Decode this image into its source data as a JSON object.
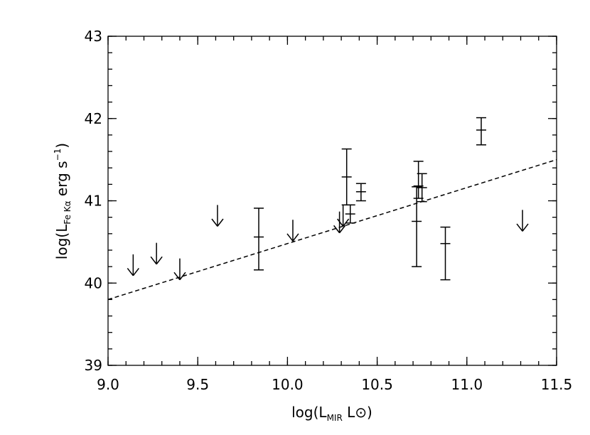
{
  "chart_data": {
    "type": "scatter",
    "xlabel": {
      "prefix": "log(L",
      "sub": "MIR",
      "suffix": " L⊙)"
    },
    "ylabel": {
      "prefix": "log(L",
      "sub": "Fe Kα",
      "middle": "   erg s",
      "sup": "−1",
      "suffix": ")"
    },
    "xlim": [
      9.0,
      11.5
    ],
    "ylim": [
      39,
      43
    ],
    "x_ticks": [
      9.0,
      9.5,
      10.0,
      10.5,
      11.0,
      11.5
    ],
    "x_tick_labels": [
      "9.0",
      "9.5",
      "10.0",
      "10.5",
      "11.0",
      "11.5"
    ],
    "y_ticks": [
      39,
      40,
      41,
      42,
      43
    ],
    "y_tick_labels": [
      "39",
      "40",
      "41",
      "42",
      "43"
    ],
    "x_minor_step": 0.1,
    "y_minor_step": 0.2,
    "detections": [
      {
        "x": 9.84,
        "y": 40.56,
        "ylow": 40.16,
        "yhigh": 40.91
      },
      {
        "x": 10.33,
        "y": 41.29,
        "ylow": 40.95,
        "yhigh": 41.63
      },
      {
        "x": 10.35,
        "y": 40.84,
        "ylow": 40.73,
        "yhigh": 40.95
      },
      {
        "x": 10.41,
        "y": 41.11,
        "ylow": 41.0,
        "yhigh": 41.21
      },
      {
        "x": 10.72,
        "y": 40.75,
        "ylow": 40.2,
        "yhigh": 41.17
      },
      {
        "x": 10.73,
        "y": 41.18,
        "ylow": 41.03,
        "yhigh": 41.48
      },
      {
        "x": 10.75,
        "y": 41.16,
        "ylow": 40.99,
        "yhigh": 41.33
      },
      {
        "x": 10.88,
        "y": 40.48,
        "ylow": 40.04,
        "yhigh": 40.68
      },
      {
        "x": 11.08,
        "y": 41.86,
        "ylow": 41.68,
        "yhigh": 42.01
      }
    ],
    "upper_limits": [
      {
        "x": 9.14,
        "y": 40.09
      },
      {
        "x": 9.27,
        "y": 40.23
      },
      {
        "x": 9.4,
        "y": 40.04
      },
      {
        "x": 9.61,
        "y": 40.69
      },
      {
        "x": 10.03,
        "y": 40.51
      },
      {
        "x": 10.29,
        "y": 40.61
      },
      {
        "x": 10.31,
        "y": 40.69
      },
      {
        "x": 11.31,
        "y": 40.63
      }
    ],
    "fit_line": {
      "x": [
        9.0,
        11.5
      ],
      "y": [
        39.8,
        41.5
      ],
      "style": "dashed"
    },
    "grid": false,
    "legend": "none"
  }
}
